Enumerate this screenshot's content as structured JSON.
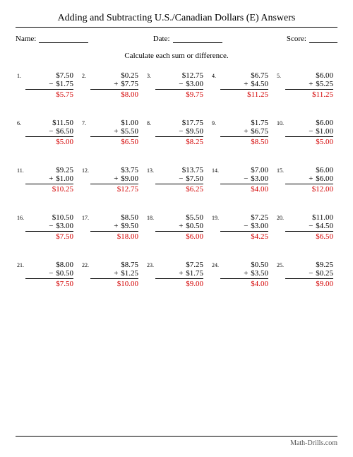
{
  "title": "Adding and Subtracting U.S./Canadian Dollars (E) Answers",
  "labels": {
    "name": "Name:",
    "date": "Date:",
    "score": "Score:"
  },
  "instruction": "Calculate each sum or difference.",
  "footer": "Math-Drills.com",
  "colors": {
    "answer": "#d40000",
    "text": "#000000",
    "footer": "#555555"
  },
  "fontsize": {
    "title": 14,
    "body": 11,
    "number": 8,
    "footer": 10
  },
  "problems": [
    {
      "n": "1.",
      "a": "$7.50",
      "op": "−",
      "b": "$1.75",
      "ans": "$5.75"
    },
    {
      "n": "2.",
      "a": "$0.25",
      "op": "+",
      "b": "$7.75",
      "ans": "$8.00"
    },
    {
      "n": "3.",
      "a": "$12.75",
      "op": "−",
      "b": "$3.00",
      "ans": "$9.75"
    },
    {
      "n": "4.",
      "a": "$6.75",
      "op": "+",
      "b": "$4.50",
      "ans": "$11.25"
    },
    {
      "n": "5.",
      "a": "$6.00",
      "op": "+",
      "b": "$5.25",
      "ans": "$11.25"
    },
    {
      "n": "6.",
      "a": "$11.50",
      "op": "−",
      "b": "$6.50",
      "ans": "$5.00"
    },
    {
      "n": "7.",
      "a": "$1.00",
      "op": "+",
      "b": "$5.50",
      "ans": "$6.50"
    },
    {
      "n": "8.",
      "a": "$17.75",
      "op": "−",
      "b": "$9.50",
      "ans": "$8.25"
    },
    {
      "n": "9.",
      "a": "$1.75",
      "op": "+",
      "b": "$6.75",
      "ans": "$8.50"
    },
    {
      "n": "10.",
      "a": "$6.00",
      "op": "−",
      "b": "$1.00",
      "ans": "$5.00"
    },
    {
      "n": "11.",
      "a": "$9.25",
      "op": "+",
      "b": "$1.00",
      "ans": "$10.25"
    },
    {
      "n": "12.",
      "a": "$3.75",
      "op": "+",
      "b": "$9.00",
      "ans": "$12.75"
    },
    {
      "n": "13.",
      "a": "$13.75",
      "op": "−",
      "b": "$7.50",
      "ans": "$6.25"
    },
    {
      "n": "14.",
      "a": "$7.00",
      "op": "−",
      "b": "$3.00",
      "ans": "$4.00"
    },
    {
      "n": "15.",
      "a": "$6.00",
      "op": "+",
      "b": "$6.00",
      "ans": "$12.00"
    },
    {
      "n": "16.",
      "a": "$10.50",
      "op": "−",
      "b": "$3.00",
      "ans": "$7.50"
    },
    {
      "n": "17.",
      "a": "$8.50",
      "op": "+",
      "b": "$9.50",
      "ans": "$18.00"
    },
    {
      "n": "18.",
      "a": "$5.50",
      "op": "+",
      "b": "$0.50",
      "ans": "$6.00"
    },
    {
      "n": "19.",
      "a": "$7.25",
      "op": "−",
      "b": "$3.00",
      "ans": "$4.25"
    },
    {
      "n": "20.",
      "a": "$11.00",
      "op": "−",
      "b": "$4.50",
      "ans": "$6.50"
    },
    {
      "n": "21.",
      "a": "$8.00",
      "op": "−",
      "b": "$0.50",
      "ans": "$7.50"
    },
    {
      "n": "22.",
      "a": "$8.75",
      "op": "+",
      "b": "$1.25",
      "ans": "$10.00"
    },
    {
      "n": "23.",
      "a": "$7.25",
      "op": "+",
      "b": "$1.75",
      "ans": "$9.00"
    },
    {
      "n": "24.",
      "a": "$0.50",
      "op": "+",
      "b": "$3.50",
      "ans": "$4.00"
    },
    {
      "n": "25.",
      "a": "$9.25",
      "op": "−",
      "b": "$0.25",
      "ans": "$9.00"
    }
  ]
}
